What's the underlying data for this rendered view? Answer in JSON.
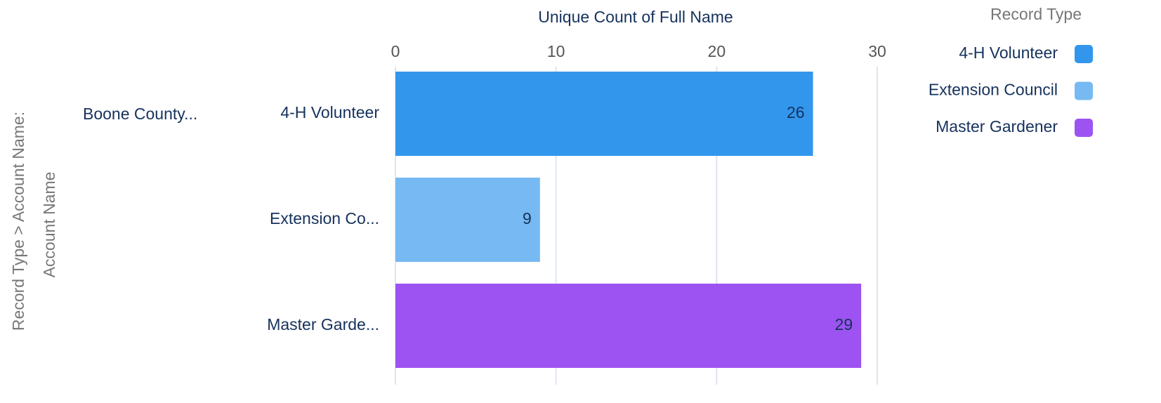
{
  "chart_data": {
    "type": "bar",
    "orientation": "horizontal",
    "x_axis_label": "Unique Count of Full Name",
    "y_axis_label": [
      "Record Type > Account Name:",
      "Account Name"
    ],
    "group": "Boone County...",
    "categories": [
      "4-H Volunteer",
      "Extension Co...",
      "Master Garde..."
    ],
    "values": [
      26,
      9,
      29
    ],
    "colors": [
      "#3296ed",
      "#77b9f2",
      "#9d53f2"
    ],
    "xlim": [
      0,
      30
    ],
    "xticks": [
      0,
      10,
      20,
      30
    ],
    "grid": true,
    "legend_title": "Record Type",
    "legend_labels": [
      "4-H Volunteer",
      "Extension Council",
      "Master Gardener"
    ]
  }
}
